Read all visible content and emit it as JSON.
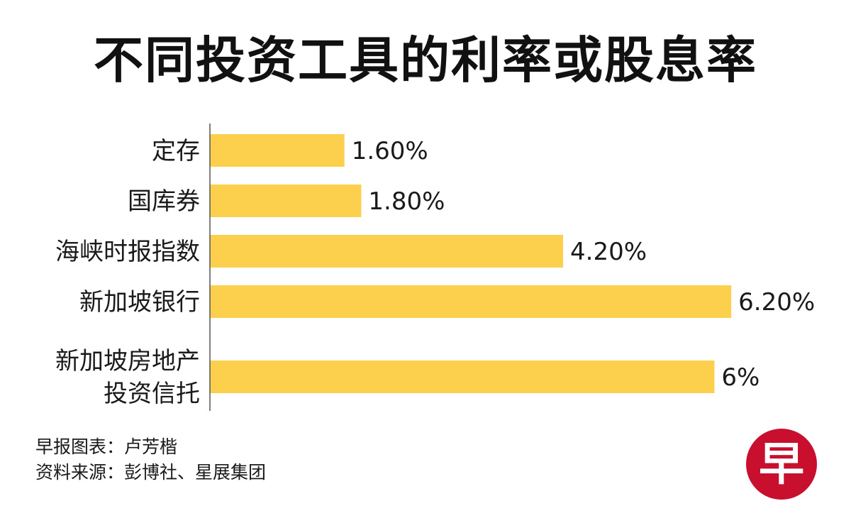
{
  "title": "不同投资工具的利率或股息率",
  "chart_data": {
    "type": "bar",
    "orientation": "horizontal",
    "categories": [
      [
        "定存"
      ],
      [
        "国库券"
      ],
      [
        "海峡时报指数"
      ],
      [
        "新加坡银行"
      ],
      [
        "新加坡房地产",
        "投资信托"
      ]
    ],
    "values": [
      1.6,
      1.8,
      4.2,
      6.2,
      6
    ],
    "value_labels": [
      "1.60%",
      "1.80%",
      "4.20%",
      "6.20%",
      "6%"
    ],
    "xlim": [
      0,
      7
    ],
    "bar_color": "#fccf4d",
    "grid": false
  },
  "footer": {
    "credit": "早报图表：卢芳楷",
    "source": "资料来源：彭博社、星展集团"
  },
  "logo": {
    "glyph": "早",
    "color": "#c8102e"
  }
}
